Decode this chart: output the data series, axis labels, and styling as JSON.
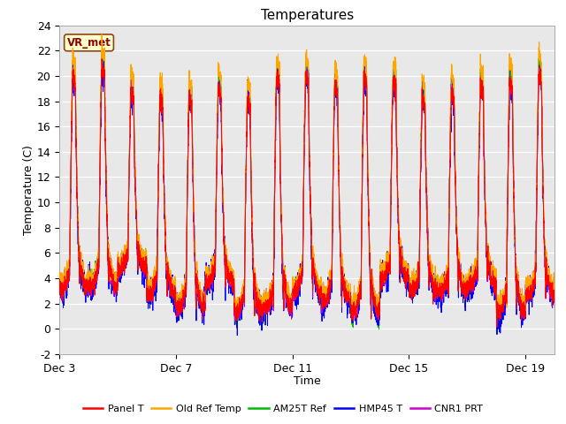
{
  "title": "Temperatures",
  "xlabel": "Time",
  "ylabel": "Temperature (C)",
  "ylim": [
    -2,
    24
  ],
  "yticks": [
    -2,
    0,
    2,
    4,
    6,
    8,
    10,
    12,
    14,
    16,
    18,
    20,
    22,
    24
  ],
  "xtick_positions": [
    0,
    4,
    8,
    12,
    16
  ],
  "xtick_labels": [
    "Dec 3",
    "Dec 7",
    "Dec 11",
    "Dec 15",
    "Dec 19"
  ],
  "annotation_text": "VR_met",
  "legend_entries": [
    "Panel T",
    "Old Ref Temp",
    "AM25T Ref",
    "HMP45 T",
    "CNR1 PRT"
  ],
  "line_colors": [
    "#ff0000",
    "#ffa500",
    "#00bb00",
    "#0000ff",
    "#cc00cc"
  ],
  "plot_bg_color": "#e8e8e8",
  "fig_bg_color": "#f2f2f2",
  "n_days": 17,
  "n_points": 4000,
  "title_fontsize": 11,
  "axis_label_fontsize": 9,
  "tick_fontsize": 9,
  "line_width": 0.7
}
